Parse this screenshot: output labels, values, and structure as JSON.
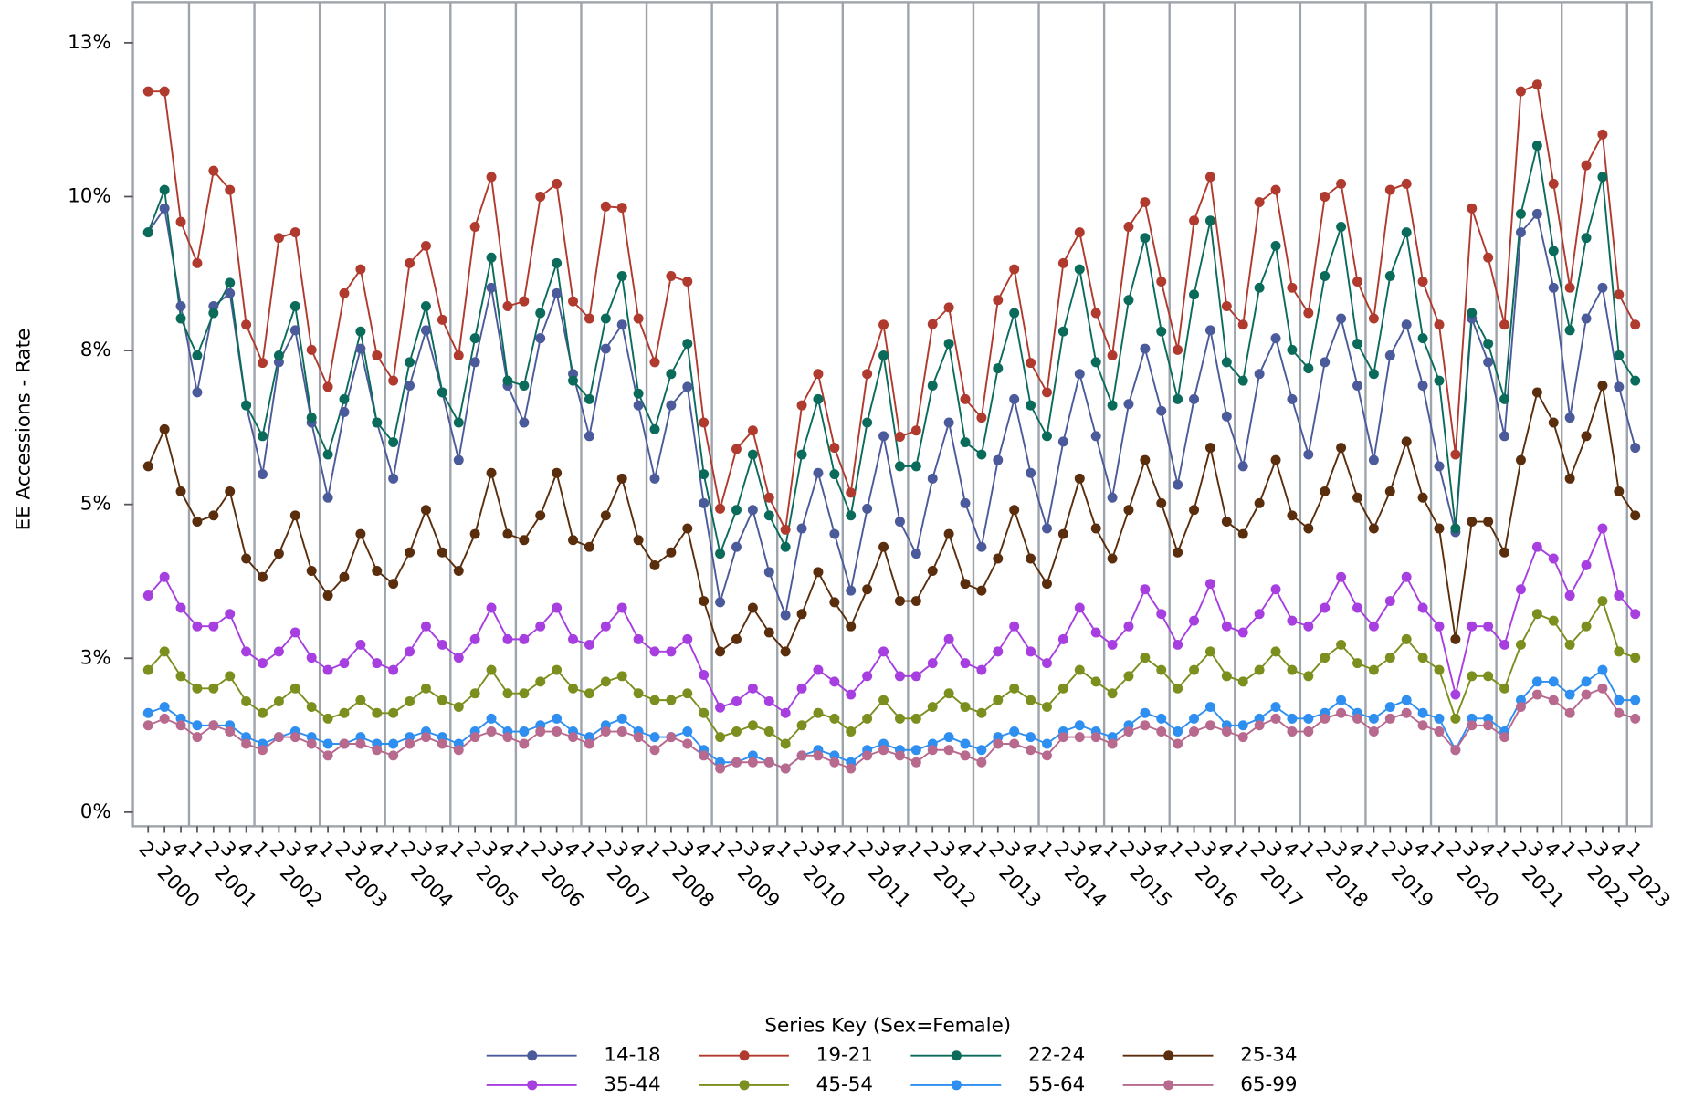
{
  "chart_data": {
    "type": "line",
    "y_label": "EE Accessions - Rate",
    "legend_title": "Series Key (Sex=Female)",
    "ylim": [
      -0.23,
      13.16
    ],
    "yticks": [
      {
        "value": 0,
        "label": "0%"
      },
      {
        "value": 2.5,
        "label": "3%"
      },
      {
        "value": 5,
        "label": "5%"
      },
      {
        "value": 7.5,
        "label": "8%"
      },
      {
        "value": 10,
        "label": "10%"
      },
      {
        "value": 12.5,
        "label": "13%"
      }
    ],
    "groups": [
      {
        "label": "2000",
        "categories": [
          "2",
          "3",
          "4"
        ]
      },
      {
        "label": "2001",
        "categories": [
          "1",
          "2",
          "3",
          "4"
        ]
      },
      {
        "label": "2002",
        "categories": [
          "1",
          "2",
          "3",
          "4"
        ]
      },
      {
        "label": "2003",
        "categories": [
          "1",
          "2",
          "3",
          "4"
        ]
      },
      {
        "label": "2004",
        "categories": [
          "1",
          "2",
          "3",
          "4"
        ]
      },
      {
        "label": "2005",
        "categories": [
          "1",
          "2",
          "3",
          "4"
        ]
      },
      {
        "label": "2006",
        "categories": [
          "1",
          "2",
          "3",
          "4"
        ]
      },
      {
        "label": "2007",
        "categories": [
          "1",
          "2",
          "3",
          "4"
        ]
      },
      {
        "label": "2008",
        "categories": [
          "1",
          "2",
          "3",
          "4"
        ]
      },
      {
        "label": "2009",
        "categories": [
          "1",
          "2",
          "3",
          "4"
        ]
      },
      {
        "label": "2010",
        "categories": [
          "1",
          "2",
          "3",
          "4"
        ]
      },
      {
        "label": "2011",
        "categories": [
          "1",
          "2",
          "3",
          "4"
        ]
      },
      {
        "label": "2012",
        "categories": [
          "1",
          "2",
          "3",
          "4"
        ]
      },
      {
        "label": "2013",
        "categories": [
          "1",
          "2",
          "3",
          "4"
        ]
      },
      {
        "label": "2014",
        "categories": [
          "1",
          "2",
          "3",
          "4"
        ]
      },
      {
        "label": "2015",
        "categories": [
          "1",
          "2",
          "3",
          "4"
        ]
      },
      {
        "label": "2016",
        "categories": [
          "1",
          "2",
          "3",
          "4"
        ]
      },
      {
        "label": "2017",
        "categories": [
          "1",
          "2",
          "3",
          "4"
        ]
      },
      {
        "label": "2018",
        "categories": [
          "1",
          "2",
          "3",
          "4"
        ]
      },
      {
        "label": "2019",
        "categories": [
          "1",
          "2",
          "3",
          "4"
        ]
      },
      {
        "label": "2020",
        "categories": [
          "1",
          "2",
          "3",
          "4"
        ]
      },
      {
        "label": "2021",
        "categories": [
          "1",
          "2",
          "3",
          "4"
        ]
      },
      {
        "label": "2022",
        "categories": [
          "1",
          "2",
          "3",
          "4"
        ]
      },
      {
        "label": "2023",
        "categories": [
          "1"
        ]
      }
    ],
    "series": [
      {
        "name": "14-18",
        "color": "#4b5a9a",
        "values": [
          9.42,
          9.81,
          8.22,
          6.82,
          8.22,
          8.43,
          6.61,
          5.49,
          7.31,
          7.83,
          6.33,
          5.11,
          6.5,
          7.53,
          6.33,
          5.42,
          6.93,
          7.83,
          6.82,
          5.72,
          7.31,
          8.52,
          6.93,
          6.33,
          7.7,
          8.43,
          7.12,
          6.11,
          7.53,
          7.92,
          6.61,
          5.42,
          6.61,
          6.91,
          5.02,
          3.41,
          4.31,
          4.91,
          3.9,
          3.2,
          4.61,
          5.51,
          4.52,
          3.6,
          4.93,
          6.11,
          4.72,
          4.2,
          5.42,
          6.33,
          5.02,
          4.31,
          5.72,
          6.71,
          5.51,
          4.61,
          6.02,
          7.12,
          6.11,
          5.11,
          6.63,
          7.53,
          6.52,
          5.32,
          6.71,
          7.83,
          6.43,
          5.62,
          7.12,
          7.7,
          6.71,
          5.81,
          7.31,
          8.02,
          6.93,
          5.72,
          7.42,
          7.92,
          6.93,
          5.62,
          4.55,
          8.02,
          7.31,
          6.11,
          9.42,
          9.72,
          8.52,
          6.41,
          8.02,
          8.52,
          6.91,
          5.92
        ]
      },
      {
        "name": "19-21",
        "color": "#b03a2e",
        "values": [
          11.71,
          11.71,
          9.59,
          8.92,
          10.42,
          10.11,
          7.92,
          7.3,
          9.33,
          9.42,
          7.51,
          6.91,
          8.43,
          8.82,
          7.42,
          7.01,
          8.92,
          9.2,
          8.0,
          7.42,
          9.51,
          10.32,
          8.22,
          8.3,
          10.0,
          10.21,
          8.3,
          8.02,
          9.84,
          9.82,
          8.02,
          7.31,
          8.71,
          8.62,
          6.33,
          4.93,
          5.9,
          6.2,
          5.11,
          4.59,
          6.61,
          7.12,
          5.92,
          5.19,
          7.12,
          7.92,
          6.1,
          6.2,
          7.93,
          8.2,
          6.71,
          6.41,
          8.32,
          8.82,
          7.3,
          6.82,
          8.92,
          9.42,
          8.11,
          7.42,
          9.51,
          9.91,
          8.62,
          7.51,
          9.61,
          10.32,
          8.22,
          7.92,
          9.91,
          10.11,
          8.52,
          8.11,
          10.0,
          10.21,
          8.62,
          8.02,
          10.11,
          10.21,
          8.62,
          7.92,
          5.81,
          9.81,
          9.01,
          7.92,
          11.71,
          11.82,
          10.21,
          8.52,
          10.51,
          11.01,
          8.41,
          7.92
        ]
      },
      {
        "name": "22-24",
        "color": "#0b6b5b",
        "values": [
          9.42,
          10.11,
          8.02,
          7.42,
          8.11,
          8.6,
          6.61,
          6.11,
          7.42,
          8.22,
          6.41,
          5.81,
          6.71,
          7.81,
          6.33,
          6.01,
          7.31,
          8.22,
          6.82,
          6.33,
          7.7,
          9.01,
          7.01,
          6.93,
          8.11,
          8.92,
          7.01,
          6.71,
          8.02,
          8.71,
          6.8,
          6.22,
          7.12,
          7.61,
          5.49,
          4.2,
          4.91,
          5.81,
          4.82,
          4.31,
          5.81,
          6.71,
          5.49,
          4.82,
          6.33,
          7.42,
          5.62,
          5.62,
          6.93,
          7.61,
          6.01,
          5.81,
          7.21,
          8.11,
          6.61,
          6.11,
          7.81,
          8.82,
          7.31,
          6.61,
          8.32,
          9.33,
          7.81,
          6.71,
          8.41,
          9.61,
          7.31,
          7.01,
          8.52,
          9.2,
          7.51,
          7.21,
          8.71,
          9.51,
          7.61,
          7.12,
          8.71,
          9.42,
          7.7,
          7.01,
          4.61,
          8.11,
          7.61,
          6.71,
          9.72,
          10.83,
          9.12,
          7.83,
          9.33,
          10.32,
          7.42,
          7.01
        ]
      },
      {
        "name": "25-34",
        "color": "#5a2d0c",
        "values": [
          5.62,
          6.22,
          5.21,
          4.72,
          4.82,
          5.21,
          4.12,
          3.82,
          4.2,
          4.82,
          3.92,
          3.52,
          3.82,
          4.52,
          3.92,
          3.71,
          4.22,
          4.91,
          4.22,
          3.92,
          4.52,
          5.51,
          4.52,
          4.42,
          4.82,
          5.51,
          4.42,
          4.31,
          4.82,
          5.42,
          4.42,
          4.01,
          4.22,
          4.61,
          3.43,
          2.61,
          2.81,
          3.32,
          2.92,
          2.61,
          3.22,
          3.9,
          3.41,
          3.02,
          3.62,
          4.31,
          3.43,
          3.43,
          3.92,
          4.52,
          3.71,
          3.6,
          4.12,
          4.91,
          4.12,
          3.71,
          4.52,
          5.42,
          4.61,
          4.12,
          4.91,
          5.72,
          5.02,
          4.22,
          4.91,
          5.92,
          4.72,
          4.52,
          5.02,
          5.72,
          4.82,
          4.61,
          5.21,
          5.92,
          5.11,
          4.61,
          5.21,
          6.02,
          5.11,
          4.61,
          2.81,
          4.72,
          4.72,
          4.22,
          5.72,
          6.82,
          6.33,
          5.42,
          6.11,
          6.93,
          5.21,
          4.82
        ]
      },
      {
        "name": "35-44",
        "color": "#a63ee0",
        "values": [
          3.52,
          3.82,
          3.32,
          3.02,
          3.02,
          3.22,
          2.61,
          2.42,
          2.61,
          2.92,
          2.51,
          2.31,
          2.42,
          2.72,
          2.42,
          2.31,
          2.61,
          3.02,
          2.72,
          2.51,
          2.81,
          3.32,
          2.81,
          2.81,
          3.02,
          3.32,
          2.81,
          2.72,
          3.02,
          3.32,
          2.81,
          2.61,
          2.61,
          2.81,
          2.23,
          1.7,
          1.8,
          2.01,
          1.8,
          1.61,
          2.01,
          2.31,
          2.12,
          1.91,
          2.21,
          2.61,
          2.21,
          2.21,
          2.42,
          2.81,
          2.42,
          2.31,
          2.61,
          3.02,
          2.61,
          2.42,
          2.81,
          3.32,
          2.92,
          2.72,
          3.02,
          3.62,
          3.22,
          2.72,
          3.11,
          3.71,
          3.02,
          2.92,
          3.22,
          3.62,
          3.11,
          3.02,
          3.32,
          3.82,
          3.32,
          3.02,
          3.43,
          3.82,
          3.32,
          3.02,
          1.91,
          3.02,
          3.02,
          2.72,
          3.62,
          4.31,
          4.12,
          3.52,
          4.01,
          4.61,
          3.52,
          3.22
        ]
      },
      {
        "name": "45-54",
        "color": "#7a8f1e",
        "values": [
          2.31,
          2.61,
          2.21,
          2.01,
          2.01,
          2.21,
          1.8,
          1.61,
          1.8,
          2.01,
          1.71,
          1.52,
          1.61,
          1.82,
          1.61,
          1.61,
          1.8,
          2.01,
          1.82,
          1.71,
          1.93,
          2.31,
          1.93,
          1.93,
          2.12,
          2.31,
          2.01,
          1.93,
          2.12,
          2.21,
          1.93,
          1.82,
          1.82,
          1.93,
          1.61,
          1.22,
          1.31,
          1.41,
          1.31,
          1.11,
          1.41,
          1.61,
          1.52,
          1.31,
          1.52,
          1.82,
          1.52,
          1.52,
          1.71,
          1.93,
          1.71,
          1.61,
          1.82,
          2.01,
          1.82,
          1.71,
          2.01,
          2.31,
          2.12,
          1.93,
          2.21,
          2.51,
          2.31,
          2.01,
          2.31,
          2.61,
          2.21,
          2.12,
          2.31,
          2.61,
          2.31,
          2.21,
          2.51,
          2.72,
          2.42,
          2.31,
          2.51,
          2.81,
          2.51,
          2.31,
          1.52,
          2.21,
          2.21,
          2.01,
          2.72,
          3.22,
          3.11,
          2.72,
          3.02,
          3.43,
          2.61,
          2.51
        ]
      },
      {
        "name": "55-64",
        "color": "#2f8ff0",
        "values": [
          1.61,
          1.71,
          1.52,
          1.41,
          1.41,
          1.41,
          1.22,
          1.11,
          1.22,
          1.31,
          1.22,
          1.11,
          1.11,
          1.22,
          1.11,
          1.11,
          1.22,
          1.31,
          1.22,
          1.11,
          1.31,
          1.52,
          1.31,
          1.31,
          1.41,
          1.52,
          1.31,
          1.22,
          1.41,
          1.52,
          1.31,
          1.22,
          1.22,
          1.31,
          1.01,
          0.81,
          0.81,
          0.92,
          0.81,
          0.71,
          0.92,
          1.01,
          0.92,
          0.81,
          1.01,
          1.11,
          1.01,
          1.01,
          1.11,
          1.22,
          1.11,
          1.01,
          1.22,
          1.31,
          1.22,
          1.11,
          1.31,
          1.41,
          1.31,
          1.22,
          1.41,
          1.61,
          1.52,
          1.31,
          1.52,
          1.71,
          1.41,
          1.41,
          1.52,
          1.71,
          1.52,
          1.52,
          1.61,
          1.82,
          1.61,
          1.52,
          1.71,
          1.82,
          1.61,
          1.52,
          1.01,
          1.52,
          1.52,
          1.31,
          1.82,
          2.12,
          2.12,
          1.91,
          2.12,
          2.31,
          1.82,
          1.82
        ]
      },
      {
        "name": "65-99",
        "color": "#b86a8e",
        "values": [
          1.41,
          1.52,
          1.41,
          1.22,
          1.41,
          1.31,
          1.11,
          1.01,
          1.22,
          1.22,
          1.11,
          0.92,
          1.11,
          1.11,
          1.01,
          0.92,
          1.11,
          1.22,
          1.11,
          1.01,
          1.22,
          1.31,
          1.22,
          1.11,
          1.31,
          1.31,
          1.22,
          1.11,
          1.31,
          1.31,
          1.22,
          1.01,
          1.22,
          1.11,
          0.92,
          0.71,
          0.81,
          0.81,
          0.81,
          0.71,
          0.92,
          0.92,
          0.81,
          0.71,
          0.92,
          1.01,
          0.92,
          0.81,
          1.01,
          1.01,
          0.92,
          0.81,
          1.11,
          1.11,
          1.01,
          0.92,
          1.22,
          1.22,
          1.22,
          1.11,
          1.31,
          1.41,
          1.31,
          1.11,
          1.31,
          1.41,
          1.31,
          1.22,
          1.41,
          1.52,
          1.31,
          1.31,
          1.52,
          1.61,
          1.52,
          1.31,
          1.52,
          1.61,
          1.41,
          1.31,
          1.01,
          1.41,
          1.41,
          1.22,
          1.71,
          1.91,
          1.82,
          1.61,
          1.91,
          2.01,
          1.61,
          1.52
        ]
      }
    ]
  }
}
